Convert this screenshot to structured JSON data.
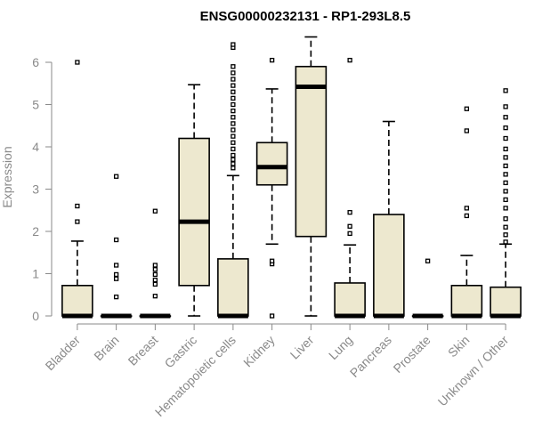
{
  "chart_data": {
    "type": "boxplot",
    "title": "ENSG00000232131 - RP1-293L8.5",
    "ylabel": "Expression",
    "xlabel": "",
    "ylim": [
      0,
      6.6
    ],
    "yticks": [
      0,
      1,
      2,
      3,
      4,
      5,
      6
    ],
    "grid": false,
    "box_fill": "#ede8cf",
    "box_stroke": "#000000",
    "axis_color": "#8a8a8a",
    "categories": [
      "Bladder",
      "Brain",
      "Breast",
      "Gastric",
      "Hematopoietic cells",
      "Kidney",
      "Liver",
      "Lung",
      "Pancreas",
      "Prostate",
      "Skin",
      "Unknown / Other"
    ],
    "boxes": [
      {
        "q1": 0,
        "median": 0,
        "q3": 0.72,
        "whisker_low": 0,
        "whisker_high": 1.77,
        "outliers": [
          2.23,
          2.6,
          6.0
        ]
      },
      {
        "q1": 0,
        "median": 0,
        "q3": 0,
        "whisker_low": 0,
        "whisker_high": 0,
        "outliers": [
          0.45,
          0.88,
          0.98,
          1.2,
          1.8,
          3.3
        ]
      },
      {
        "q1": 0,
        "median": 0,
        "q3": 0,
        "whisker_low": 0,
        "whisker_high": 0,
        "outliers": [
          0.47,
          0.75,
          0.85,
          0.98,
          1.1,
          1.2,
          2.48
        ]
      },
      {
        "q1": 0.72,
        "median": 2.23,
        "q3": 4.2,
        "whisker_low": 0,
        "whisker_high": 5.47,
        "outliers": []
      },
      {
        "q1": 0,
        "median": 0,
        "q3": 1.35,
        "whisker_low": 0,
        "whisker_high": 3.32,
        "outliers": [
          3.5,
          3.6,
          3.7,
          3.8,
          3.95,
          4.1,
          4.25,
          4.4,
          4.55,
          4.7,
          4.85,
          5.0,
          5.15,
          5.3,
          5.45,
          5.6,
          5.75,
          5.9,
          6.35,
          6.42
        ]
      },
      {
        "q1": 3.1,
        "median": 3.52,
        "q3": 4.1,
        "whisker_low": 1.7,
        "whisker_high": 5.37,
        "outliers": [
          0,
          1.23,
          1.3,
          6.05
        ]
      },
      {
        "q1": 1.88,
        "median": 5.42,
        "q3": 5.9,
        "whisker_low": 0,
        "whisker_high": 6.6,
        "outliers": []
      },
      {
        "q1": 0,
        "median": 0,
        "q3": 0.78,
        "whisker_low": 0,
        "whisker_high": 1.68,
        "outliers": [
          1.95,
          2.12,
          2.45,
          6.05
        ]
      },
      {
        "q1": 0,
        "median": 0,
        "q3": 2.4,
        "whisker_low": 0,
        "whisker_high": 4.6,
        "outliers": []
      },
      {
        "q1": 0,
        "median": 0,
        "q3": 0,
        "whisker_low": 0,
        "whisker_high": 0,
        "outliers": [
          1.3
        ]
      },
      {
        "q1": 0,
        "median": 0,
        "q3": 0.72,
        "whisker_low": 0,
        "whisker_high": 1.43,
        "outliers": [
          2.37,
          2.55,
          4.38,
          4.9
        ]
      },
      {
        "q1": 0,
        "median": 0,
        "q3": 0.68,
        "whisker_low": 0,
        "whisker_high": 1.7,
        "outliers": [
          1.75,
          1.92,
          2.1,
          2.3,
          2.55,
          2.75,
          2.95,
          3.15,
          3.35,
          3.55,
          3.75,
          3.95,
          4.2,
          4.45,
          4.7,
          4.95,
          5.33
        ]
      }
    ]
  }
}
